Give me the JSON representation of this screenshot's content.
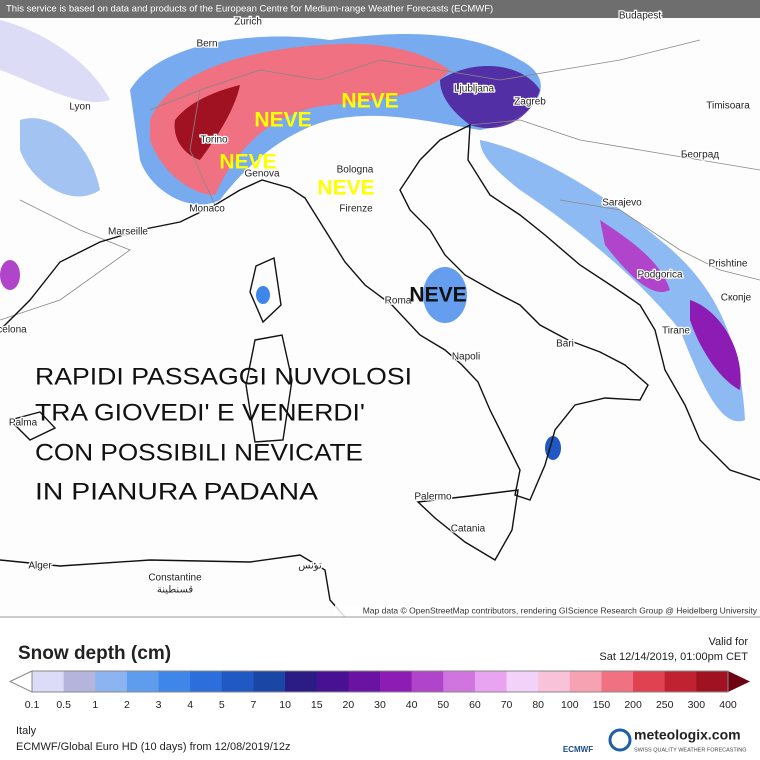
{
  "header": {
    "disclaimer": "This service is based on data and products of the European Centre for Medium-range Weather Forecasts (ECMWF)"
  },
  "map": {
    "attribution": "Map data © OpenStreetMap contributors, rendering GIScience Research Group @ Heidelberg University",
    "cities": [
      "Budapest",
      "Zurich",
      "Bern",
      "Lyon",
      "Torino",
      "Genova",
      "Monaco",
      "Marseille",
      "Bologna",
      "Firenze",
      "Roma",
      "Napoli",
      "Bari",
      "Palermo",
      "Catania",
      "Palma",
      "Alger",
      "Constantine",
      "قسنطينة",
      "تونس",
      "Ljubljana",
      "Zagreb",
      "Timisoara",
      "Београд",
      "Sarajevo",
      "Podgorica",
      "Prishtine",
      "Скопје",
      "Tirane",
      "celona"
    ],
    "annotations": [
      "NEVE",
      "NEVE",
      "NEVE",
      "NEVE",
      "NEVE"
    ],
    "caption": [
      "RAPIDI PASSAGGI NUVOLOSI",
      "TRA GIOVEDI' E VENERDI'",
      "CON POSSIBILI NEVICATE",
      "IN PIANURA PADANA"
    ]
  },
  "legend": {
    "title": "Snow depth (cm)",
    "ticks": [
      0.1,
      0.5,
      1,
      2,
      3,
      4,
      5,
      7,
      10,
      15,
      20,
      30,
      40,
      50,
      60,
      70,
      80,
      100,
      150,
      200,
      250,
      300,
      400
    ],
    "colors": [
      "#dcdcf6",
      "#b4b4dc",
      "#8cb4f0",
      "#5e9cee",
      "#3e86ea",
      "#2c6edc",
      "#2058c4",
      "#1a46a6",
      "#2a1c84",
      "#481092",
      "#6a12a2",
      "#8c1cb4",
      "#b044ca",
      "#d074e0",
      "#e8a4f0",
      "#f2d2f8",
      "#f8c2d8",
      "#f6a2b2",
      "#f07282",
      "#e04252",
      "#c02232",
      "#a01222"
    ],
    "over_color": "#6e0012",
    "valid_label": "Valid for",
    "valid_time": "Sat 12/14/2019, 01:00pm CET"
  },
  "footer": {
    "region": "Italy",
    "model": "ECMWF/Global Euro HD (10 days)  from  12/08/2019/12z",
    "brand": "meteologix.com",
    "slogan": "SWISS QUALITY WEATHER FORECASTING",
    "ecmwf": "ECMWF"
  }
}
